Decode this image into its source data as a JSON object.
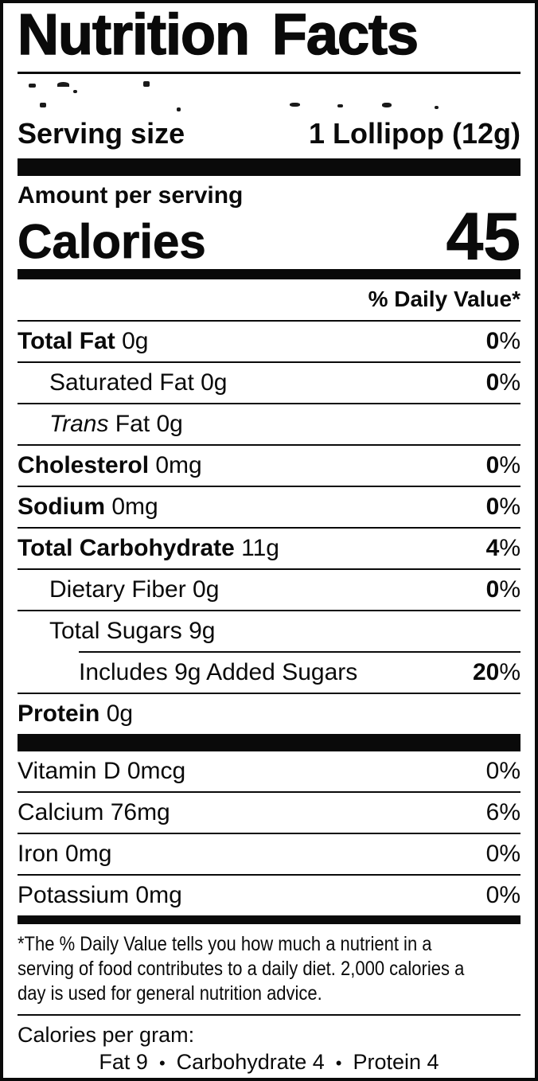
{
  "title": "Nutrition Facts",
  "colors": {
    "ink": "#0a0a0a",
    "paper": "#ffffff"
  },
  "serving": {
    "label": "Serving size",
    "value": "1 Lollipop (12g)"
  },
  "calories": {
    "section_label": "Amount per serving",
    "label": "Calories",
    "value": "45"
  },
  "daily_value_header": "% Daily Value*",
  "nutrient_rows": [
    {
      "name": "Total Fat",
      "amount": "0g",
      "dv": "0%",
      "indent": 0,
      "bold_name": true,
      "bold_dv": true
    },
    {
      "name": "Saturated Fat",
      "amount": "0g",
      "dv": "0%",
      "indent": 1,
      "bold_name": false,
      "bold_dv": true
    },
    {
      "name_italic": "Trans",
      "name": " Fat",
      "amount": "0g",
      "dv": "",
      "indent": 1,
      "bold_name": false,
      "bold_dv": false
    },
    {
      "name": "Cholesterol",
      "amount": "0mg",
      "dv": "0%",
      "indent": 0,
      "bold_name": true,
      "bold_dv": true
    },
    {
      "name": "Sodium",
      "amount": "0mg",
      "dv": "0%",
      "indent": 0,
      "bold_name": true,
      "bold_dv": true
    },
    {
      "name": "Total Carbohydrate",
      "amount": "11g",
      "dv": "4%",
      "indent": 0,
      "bold_name": true,
      "bold_dv": true
    },
    {
      "name": "Dietary Fiber",
      "amount": "0g",
      "dv": "0%",
      "indent": 1,
      "bold_name": false,
      "bold_dv": true
    },
    {
      "name": "Total Sugars",
      "amount": "9g",
      "dv": "",
      "indent": 1,
      "bold_name": false,
      "bold_dv": false
    },
    {
      "name": "Includes 9g Added Sugars",
      "amount": "",
      "dv": "20%",
      "indent": 2,
      "bold_name": false,
      "bold_dv": true
    },
    {
      "name": "Protein",
      "amount": "0g",
      "dv": "",
      "indent": 0,
      "bold_name": true,
      "bold_dv": false
    }
  ],
  "micronutrient_rows": [
    {
      "name": "Vitamin D",
      "amount": "0mcg",
      "dv": "0%"
    },
    {
      "name": "Calcium",
      "amount": "76mg",
      "dv": "6%"
    },
    {
      "name": "Iron",
      "amount": "0mg",
      "dv": "0%"
    },
    {
      "name": "Potassium",
      "amount": "0mg",
      "dv": "0%"
    }
  ],
  "footnote_lines": [
    "*The % Daily Value tells you how much a nutrient in a",
    "serving of food contributes to a daily diet. 2,000 calories a",
    "day is used for general nutrition advice."
  ],
  "calories_per_gram": {
    "label": "Calories per gram:",
    "items": [
      "Fat 9",
      "Carbohydrate 4",
      "Protein 4"
    ],
    "bullet": "•"
  }
}
